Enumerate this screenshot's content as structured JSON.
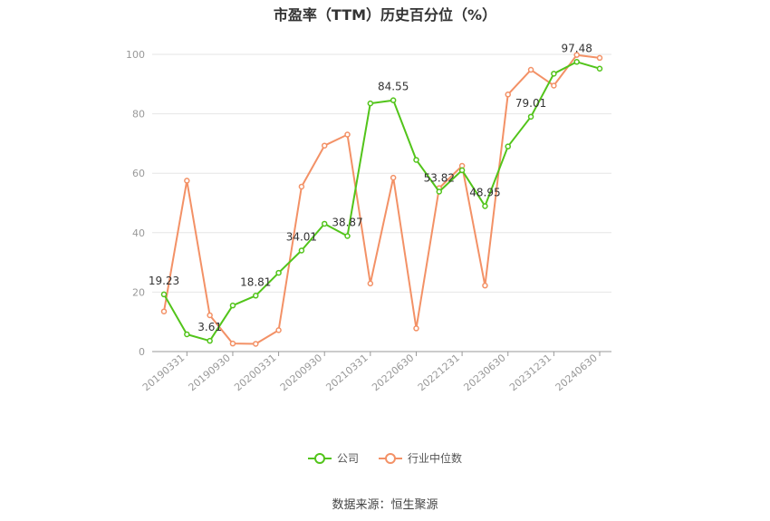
{
  "chart_data": {
    "type": "line",
    "title": "市盈率（TTM）历史百分位（%）",
    "x_tick_labels": [
      "20190331",
      "20190930",
      "20200331",
      "20200930",
      "20210331",
      "20220630",
      "20221231",
      "20230630",
      "20231231",
      "20240630"
    ],
    "ylim": [
      0,
      100
    ],
    "y_ticks": [
      0,
      20,
      40,
      60,
      80,
      100
    ],
    "grid": true,
    "legend_position": "bottom",
    "series": [
      {
        "name": "公司",
        "color": "#52c41a",
        "values": [
          19.23,
          5.8,
          3.61,
          15.5,
          18.81,
          26.5,
          34.01,
          43.0,
          38.87,
          83.5,
          84.55,
          64.5,
          53.82,
          61.0,
          48.95,
          69.0,
          79.01,
          93.5,
          97.48,
          95.2
        ],
        "labels": {
          "0": "19.23",
          "2": "3.61",
          "4": "18.81",
          "6": "34.01",
          "8": "38.87",
          "10": "84.55",
          "12": "53.82",
          "14": "48.95",
          "16": "79.01",
          "18": "97.48"
        }
      },
      {
        "name": "行业中位数",
        "color": "#f39166",
        "values": [
          13.5,
          57.5,
          12.2,
          2.7,
          2.6,
          7.2,
          55.5,
          69.3,
          73.0,
          22.9,
          58.5,
          7.8,
          55.0,
          62.5,
          22.2,
          86.5,
          94.8,
          89.5,
          99.8,
          98.8
        ]
      }
    ]
  },
  "source": "数据来源：恒生聚源"
}
